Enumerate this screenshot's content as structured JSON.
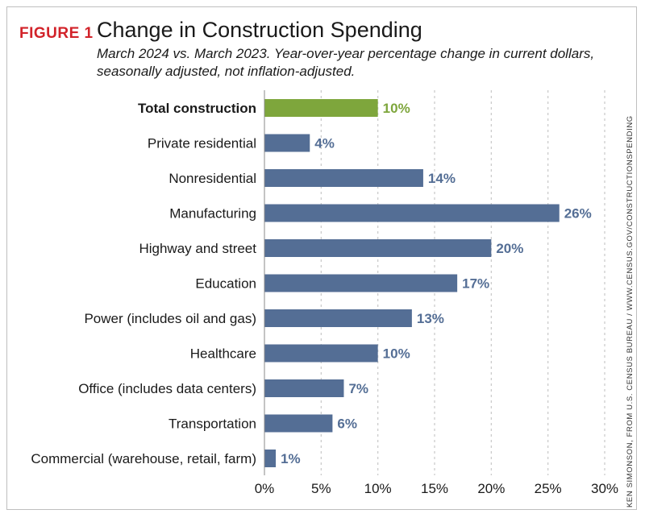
{
  "figure": {
    "label": "FIGURE 1",
    "title": "Change in Construction Spending",
    "subtitle": "March 2024 vs. March 2023. Year-over-year percentage change in current dollars, seasonally adjusted, not inflation-adjusted.",
    "credit": "KEN SIMONSON, FROM U.S. CENSUS BUREAU / WWW.CENSUS.GOV/CONSTRUCTIONSPENDING"
  },
  "colors": {
    "highlight": "#7ea63c",
    "bar": "#546e95",
    "figure_label": "#d2232a",
    "grid": "#c8c8c8"
  },
  "chart_data": {
    "type": "bar",
    "orientation": "horizontal",
    "title": "Change in Construction Spending",
    "xlabel": "",
    "ylabel": "",
    "xlim": [
      0,
      30
    ],
    "xticks": [
      0,
      5,
      10,
      15,
      20,
      25,
      30
    ],
    "tick_labels": [
      "0%",
      "5%",
      "10%",
      "15%",
      "20%",
      "25%",
      "30%"
    ],
    "grid": "vertical dashed",
    "categories": [
      "Total construction",
      "Private residential",
      "Nonresidential",
      "Manufacturing",
      "Highway and street",
      "Education",
      "Power (includes oil and gas)",
      "Healthcare",
      "Office (includes data centers)",
      "Transportation",
      "Commercial (warehouse, retail, farm)"
    ],
    "values": [
      10,
      4,
      14,
      26,
      20,
      17,
      13,
      10,
      7,
      6,
      1
    ],
    "value_labels": [
      "10%",
      "4%",
      "14%",
      "26%",
      "20%",
      "17%",
      "13%",
      "10%",
      "7%",
      "6%",
      "1%"
    ],
    "highlighted": [
      "Total construction"
    ]
  }
}
